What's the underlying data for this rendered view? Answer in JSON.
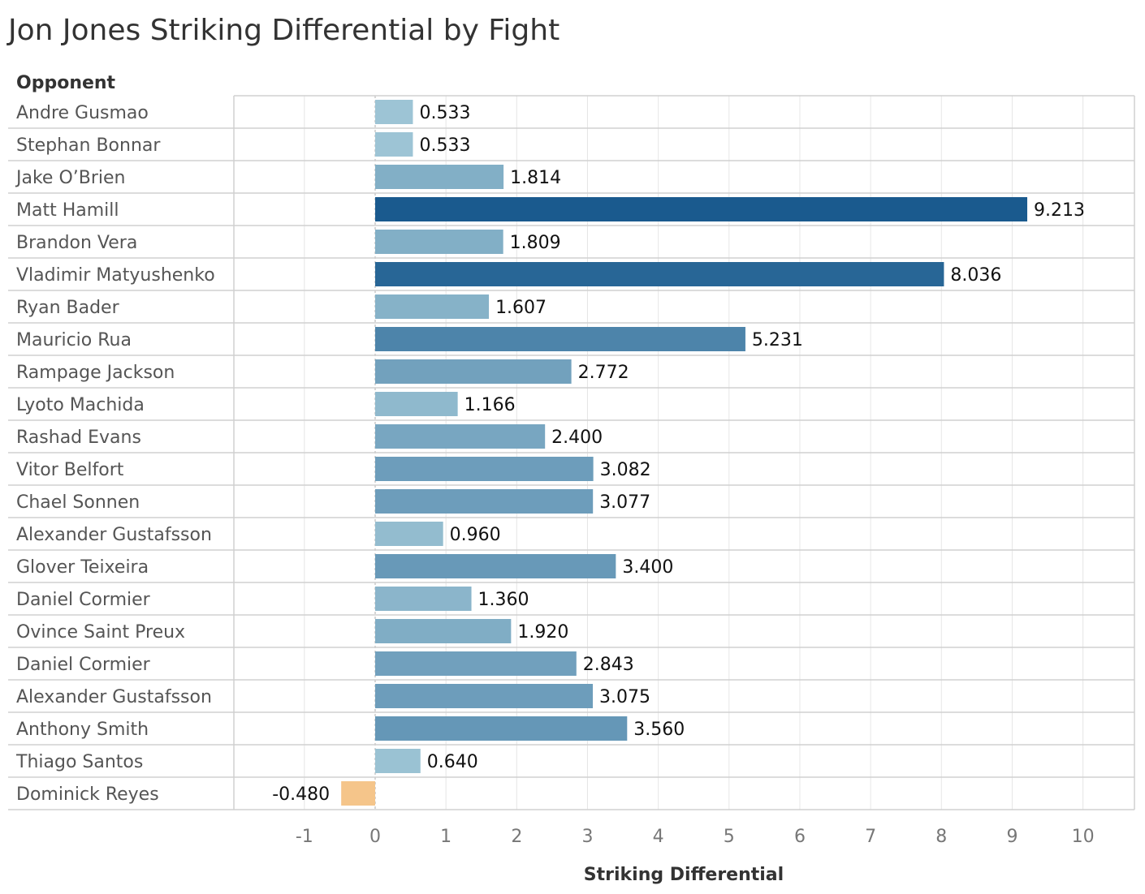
{
  "chart_data": {
    "type": "bar",
    "orientation": "horizontal",
    "title": "Jon Jones Striking Differential by Fight",
    "row_header": "Opponent",
    "xlabel": "Striking Differential",
    "xlim": [
      -2,
      10.75
    ],
    "x_ticks": [
      -1,
      0,
      1,
      2,
      3,
      4,
      5,
      6,
      7,
      8,
      9,
      10
    ],
    "grid": true,
    "categories": [
      "Andre Gusmao",
      "Stephan Bonnar",
      "Jake O’Brien",
      "Matt Hamill",
      "Brandon Vera",
      "Vladimir Matyushenko",
      "Ryan Bader",
      "Mauricio Rua",
      "Rampage Jackson",
      "Lyoto Machida",
      "Rashad Evans",
      "Vitor Belfort",
      "Chael Sonnen",
      "Alexander Gustafsson",
      "Glover Teixeira",
      "Daniel Cormier",
      "Ovince Saint Preux",
      "Daniel Cormier",
      "Alexander Gustafsson",
      "Anthony Smith",
      "Thiago Santos",
      "Dominick Reyes"
    ],
    "values": [
      0.533,
      0.533,
      1.814,
      9.213,
      1.809,
      8.036,
      1.607,
      5.231,
      2.772,
      1.166,
      2.4,
      3.082,
      3.077,
      0.96,
      3.4,
      1.36,
      1.92,
      2.843,
      3.075,
      3.56,
      0.64,
      -0.48
    ],
    "value_labels": [
      "0.533",
      "0.533",
      "1.814",
      "9.213",
      "1.809",
      "8.036",
      "1.607",
      "5.231",
      "2.772",
      "1.166",
      "2.400",
      "3.082",
      "3.077",
      "0.960",
      "3.400",
      "1.360",
      "1.920",
      "2.843",
      "3.075",
      "3.560",
      "0.640",
      "-0.480"
    ],
    "colors": {
      "negative": "#f5c58a",
      "positive_low": "#aed2de",
      "positive_high": "#1a5a8e",
      "grid": "#e6e6e6",
      "row_divider": "#d0d0d0",
      "zero_line": "#bbbbbb"
    }
  }
}
